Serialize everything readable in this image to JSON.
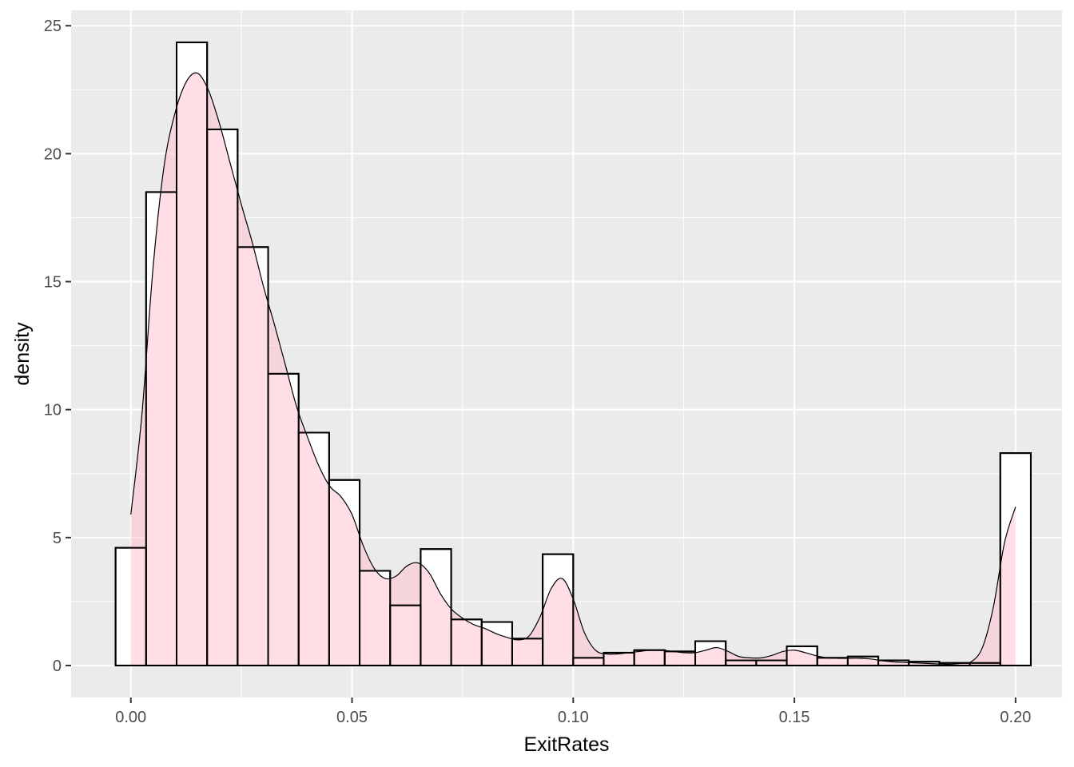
{
  "chart_data": {
    "type": "histogram",
    "title": "",
    "xlabel": "ExitRates",
    "ylabel": "density",
    "xlim": [
      -0.0135,
      0.2105
    ],
    "ylim": [
      -1.25,
      25.6
    ],
    "x_ticks": [
      0.0,
      0.05,
      0.1,
      0.15,
      0.2
    ],
    "x_tick_labels": [
      "0.00",
      "0.05",
      "0.10",
      "0.15",
      "0.20"
    ],
    "y_ticks": [
      0,
      5,
      10,
      15,
      20,
      25
    ],
    "y_tick_labels": [
      "0",
      "5",
      "10",
      "15",
      "20",
      "25"
    ],
    "grid": true,
    "legend": "none",
    "colors": {
      "panel_background": "#ebebeb",
      "grid_major": "#ffffff",
      "bar_fill": "#ffffff",
      "bar_outline": "#000000",
      "density_fill": "#ffc0cb",
      "density_line": "#000000"
    },
    "histogram": {
      "bin_width": 0.006897,
      "bin_centers": [
        0.0,
        0.006897,
        0.013793,
        0.02069,
        0.027586,
        0.034483,
        0.041379,
        0.048276,
        0.055172,
        0.062069,
        0.068966,
        0.075862,
        0.082759,
        0.089655,
        0.096552,
        0.103448,
        0.110345,
        0.117241,
        0.124138,
        0.131034,
        0.137931,
        0.144828,
        0.151724,
        0.158621,
        0.165517,
        0.172414,
        0.17931,
        0.186207,
        0.193103,
        0.2
      ],
      "densities": [
        4.6,
        18.5,
        24.35,
        20.95,
        16.35,
        11.4,
        9.1,
        7.25,
        3.7,
        2.35,
        4.55,
        1.8,
        1.7,
        1.05,
        4.35,
        0.3,
        0.5,
        0.6,
        0.55,
        0.95,
        0.2,
        0.2,
        0.75,
        0.3,
        0.35,
        0.2,
        0.15,
        0.1,
        0.1,
        8.3
      ]
    },
    "density_curve": {
      "x": [
        0.0,
        0.0025,
        0.005,
        0.0075,
        0.01,
        0.0125,
        0.015,
        0.0175,
        0.02,
        0.0225,
        0.025,
        0.0275,
        0.03,
        0.0325,
        0.035,
        0.0375,
        0.04,
        0.0425,
        0.045,
        0.0475,
        0.05,
        0.0525,
        0.055,
        0.0575,
        0.06,
        0.0625,
        0.065,
        0.0675,
        0.07,
        0.0725,
        0.075,
        0.0775,
        0.08,
        0.0825,
        0.085,
        0.0875,
        0.09,
        0.0925,
        0.095,
        0.0975,
        0.1,
        0.1025,
        0.105,
        0.1075,
        0.11,
        0.1125,
        0.115,
        0.1175,
        0.12,
        0.1225,
        0.125,
        0.1275,
        0.13,
        0.1325,
        0.135,
        0.1375,
        0.14,
        0.1425,
        0.145,
        0.1475,
        0.15,
        0.1525,
        0.155,
        0.1575,
        0.16,
        0.1625,
        0.165,
        0.1675,
        0.17,
        0.1725,
        0.175,
        0.1775,
        0.18,
        0.1825,
        0.185,
        0.1875,
        0.19,
        0.1925,
        0.195,
        0.1975,
        0.2
      ],
      "y": [
        5.9,
        9.8,
        15.5,
        19.5,
        21.6,
        22.8,
        23.15,
        22.5,
        21.2,
        19.6,
        18.0,
        16.5,
        14.8,
        13.3,
        11.7,
        10.1,
        8.9,
        7.8,
        7.0,
        6.6,
        5.9,
        4.7,
        3.8,
        3.4,
        3.5,
        3.9,
        4.0,
        3.6,
        2.8,
        2.2,
        1.85,
        1.6,
        1.45,
        1.25,
        1.1,
        1.0,
        1.15,
        1.9,
        3.0,
        3.4,
        2.6,
        1.3,
        0.6,
        0.45,
        0.45,
        0.5,
        0.55,
        0.6,
        0.6,
        0.55,
        0.5,
        0.5,
        0.6,
        0.7,
        0.55,
        0.35,
        0.3,
        0.3,
        0.4,
        0.55,
        0.6,
        0.5,
        0.38,
        0.3,
        0.28,
        0.28,
        0.28,
        0.25,
        0.18,
        0.14,
        0.12,
        0.1,
        0.08,
        0.06,
        0.05,
        0.08,
        0.15,
        0.7,
        2.3,
        4.8,
        6.2
      ]
    }
  }
}
